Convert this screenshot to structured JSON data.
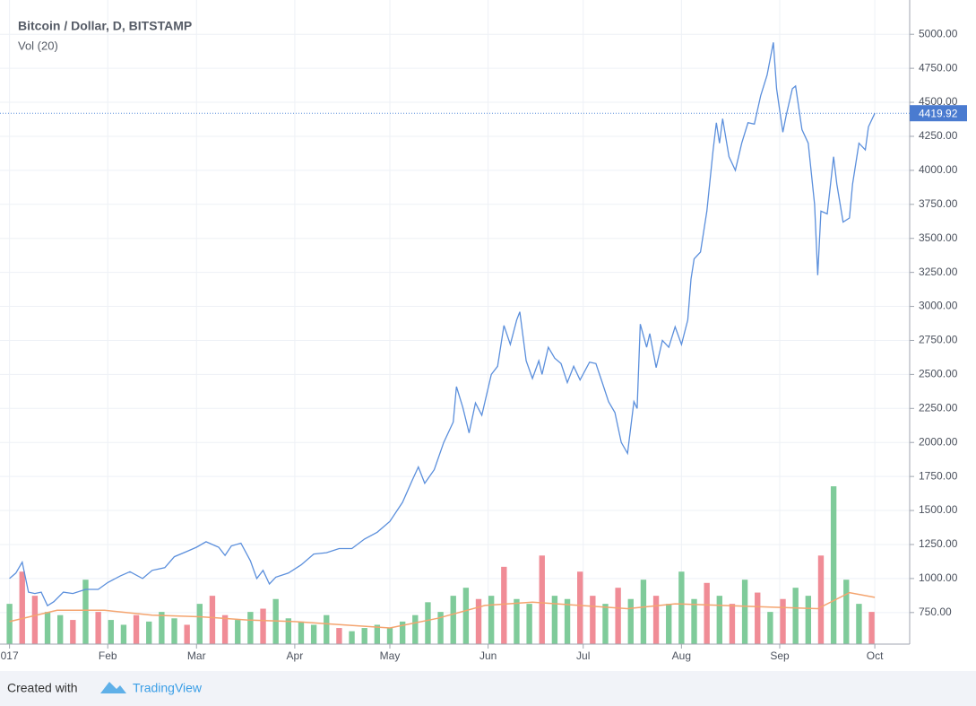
{
  "chart_data": {
    "type": "line",
    "title": "Bitcoin / Dollar, D, BITSTAMP",
    "subtitle": "Vol (20)",
    "footer": {
      "text": "Created with",
      "brand": "TradingView"
    },
    "xlim": [
      -3,
      284
    ],
    "xticks": [
      {
        "value": 0,
        "label": "017"
      },
      {
        "value": 31,
        "label": "Feb"
      },
      {
        "value": 59,
        "label": "Mar"
      },
      {
        "value": 90,
        "label": "Apr"
      },
      {
        "value": 120,
        "label": "May"
      },
      {
        "value": 151,
        "label": "Jun"
      },
      {
        "value": 181,
        "label": "Jul"
      },
      {
        "value": 212,
        "label": "Aug"
      },
      {
        "value": 243,
        "label": "Sep"
      },
      {
        "value": 273,
        "label": "Oct"
      }
    ],
    "ylim": [
      518,
      5252
    ],
    "yticks": [
      {
        "value": 750,
        "label": "750.00"
      },
      {
        "value": 1000,
        "label": "1000.00"
      },
      {
        "value": 1250,
        "label": "1250.00"
      },
      {
        "value": 1500,
        "label": "1500.00"
      },
      {
        "value": 1750,
        "label": "1750.00"
      },
      {
        "value": 2000,
        "label": "2000.00"
      },
      {
        "value": 2250,
        "label": "2250.00"
      },
      {
        "value": 2500,
        "label": "2500.00"
      },
      {
        "value": 2750,
        "label": "2750.00"
      },
      {
        "value": 3000,
        "label": "3000.00"
      },
      {
        "value": 3250,
        "label": "3250.00"
      },
      {
        "value": 3500,
        "label": "3500.00"
      },
      {
        "value": 3750,
        "label": "3750.00"
      },
      {
        "value": 4000,
        "label": "4000.00"
      },
      {
        "value": 4250,
        "label": "4250.00"
      },
      {
        "value": 4500,
        "label": "4500.00"
      },
      {
        "value": 4750,
        "label": "4750.00"
      },
      {
        "value": 5000,
        "label": "5000.00"
      }
    ],
    "y2lim": [
      0,
      400
    ],
    "grid": true,
    "series": [
      {
        "color": "#5b8fdc",
        "x": [
          0,
          2,
          4,
          6,
          8,
          10,
          12,
          14,
          17,
          20,
          24,
          28,
          31,
          35,
          38,
          42,
          45,
          49,
          52,
          56,
          59,
          62,
          64,
          66,
          68,
          70,
          73,
          76,
          78,
          80,
          82,
          84,
          88,
          92,
          96,
          100,
          104,
          108,
          112,
          116,
          120,
          124,
          127,
          129,
          131,
          134,
          137,
          140,
          141,
          143,
          145,
          147,
          149,
          152,
          154,
          156,
          158,
          160,
          161,
          163,
          165,
          167,
          168,
          170,
          172,
          174,
          176,
          178,
          180,
          183,
          185,
          187,
          189,
          191,
          193,
          195,
          197,
          198,
          199,
          201,
          202,
          204,
          206,
          208,
          210,
          212,
          214,
          215,
          216,
          218,
          220,
          222,
          223,
          224,
          225,
          227,
          229,
          231,
          233,
          235,
          237,
          239,
          241,
          242,
          244,
          245,
          247,
          248,
          250,
          252,
          254,
          255,
          256,
          258,
          260,
          261,
          263,
          265,
          266,
          268,
          270,
          271,
          273
        ],
        "values": [
          1000,
          1040,
          1120,
          900,
          890,
          900,
          800,
          830,
          900,
          890,
          920,
          920,
          970,
          1020,
          1050,
          1000,
          1060,
          1080,
          1160,
          1200,
          1230,
          1270,
          1250,
          1230,
          1170,
          1240,
          1260,
          1130,
          1000,
          1060,
          960,
          1010,
          1040,
          1100,
          1180,
          1190,
          1220,
          1220,
          1290,
          1340,
          1420,
          1560,
          1720,
          1820,
          1700,
          1800,
          2000,
          2150,
          2410,
          2260,
          2070,
          2290,
          2200,
          2500,
          2560,
          2860,
          2720,
          2900,
          2960,
          2600,
          2470,
          2600,
          2500,
          2700,
          2620,
          2580,
          2440,
          2560,
          2460,
          2590,
          2580,
          2440,
          2300,
          2220,
          2000,
          1920,
          2300,
          2250,
          2870,
          2700,
          2800,
          2550,
          2750,
          2700,
          2850,
          2720,
          2900,
          3200,
          3350,
          3400,
          3700,
          4150,
          4350,
          4200,
          4380,
          4100,
          4000,
          4200,
          4350,
          4340,
          4550,
          4700,
          4940,
          4600,
          4280,
          4400,
          4600,
          4620,
          4300,
          4200,
          3750,
          3230,
          3700,
          3680,
          4100,
          3900,
          3620,
          3650,
          3900,
          4200,
          4150,
          4320,
          4419.92
        ]
      }
    ],
    "volume": {
      "axis": "y2",
      "up_color": "#7fcb9a",
      "down_color": "#f08c96",
      "x": [
        0,
        4,
        8,
        12,
        16,
        20,
        24,
        28,
        32,
        36,
        40,
        44,
        48,
        52,
        56,
        60,
        64,
        68,
        72,
        76,
        80,
        84,
        88,
        92,
        96,
        100,
        104,
        108,
        112,
        116,
        120,
        124,
        128,
        132,
        136,
        140,
        144,
        148,
        152,
        156,
        160,
        164,
        168,
        172,
        176,
        180,
        184,
        188,
        192,
        196,
        200,
        204,
        208,
        212,
        216,
        220,
        224,
        228,
        232,
        236,
        240,
        244,
        248,
        252,
        256,
        260,
        264,
        268,
        272
      ],
      "values": [
        25,
        45,
        30,
        20,
        18,
        15,
        40,
        20,
        15,
        12,
        18,
        14,
        20,
        16,
        12,
        25,
        30,
        18,
        15,
        20,
        22,
        28,
        16,
        14,
        12,
        18,
        10,
        8,
        10,
        12,
        10,
        14,
        18,
        26,
        20,
        30,
        35,
        28,
        30,
        48,
        28,
        25,
        55,
        30,
        28,
        45,
        30,
        25,
        35,
        28,
        40,
        30,
        25,
        45,
        28,
        38,
        30,
        25,
        40,
        32,
        20,
        28,
        35,
        30,
        55,
        98,
        40,
        25,
        20
      ],
      "up": [
        1,
        0,
        0,
        1,
        1,
        0,
        1,
        0,
        1,
        1,
        0,
        1,
        1,
        1,
        0,
        1,
        0,
        0,
        1,
        1,
        0,
        1,
        1,
        1,
        1,
        1,
        0,
        1,
        1,
        1,
        1,
        1,
        1,
        1,
        1,
        1,
        1,
        0,
        1,
        0,
        1,
        1,
        0,
        1,
        1,
        0,
        0,
        1,
        0,
        1,
        1,
        0,
        1,
        1,
        1,
        0,
        1,
        0,
        1,
        0,
        1,
        0,
        1,
        1,
        0,
        1,
        1,
        1,
        0
      ],
      "ma_color": "#f4a46f",
      "ma_x": [
        0,
        15,
        30,
        45,
        60,
        75,
        90,
        105,
        120,
        135,
        150,
        165,
        180,
        195,
        210,
        225,
        240,
        255,
        265,
        273
      ],
      "ma_values": [
        14,
        21,
        21,
        18,
        17,
        15,
        14,
        12,
        10,
        16,
        24,
        26,
        24,
        22,
        25,
        24,
        23,
        22,
        32,
        29
      ]
    }
  }
}
